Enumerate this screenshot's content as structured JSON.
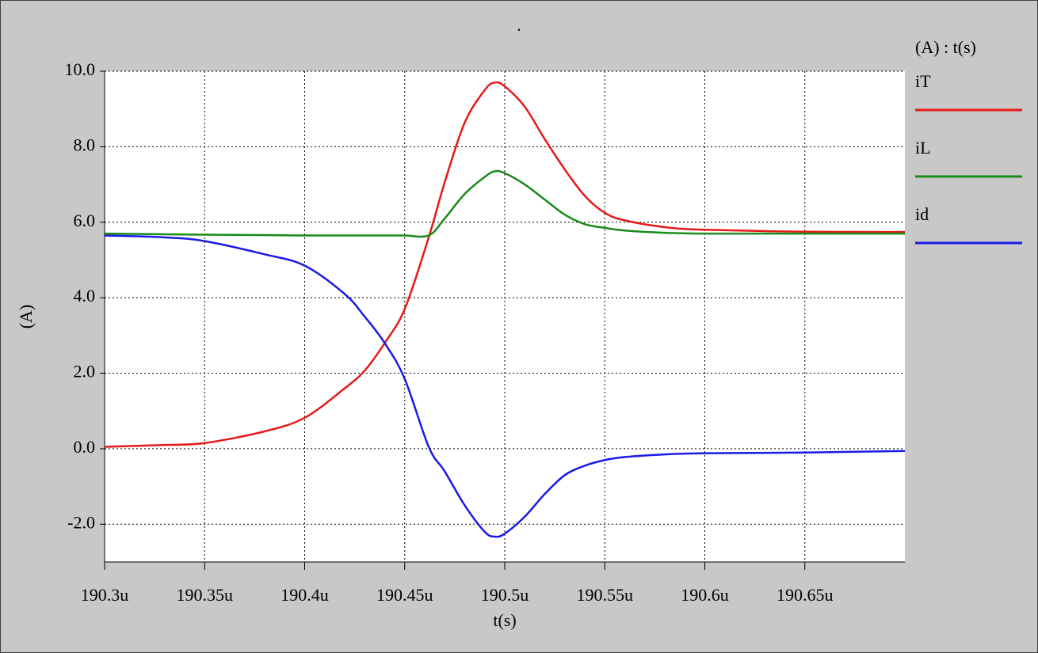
{
  "chart_data": {
    "type": "line",
    "title": ".",
    "y_label": "(A)",
    "x_label": "t(s)",
    "legend_title": "(A) : t(s)",
    "x": [
      190.3,
      190.33,
      190.35,
      190.38,
      190.4,
      190.42,
      190.43,
      190.44,
      190.45,
      190.462,
      190.47,
      190.48,
      190.49,
      190.495,
      190.5,
      190.51,
      190.52,
      190.53,
      190.54,
      190.55,
      190.56,
      190.58,
      190.6,
      190.65,
      190.7
    ],
    "series": [
      {
        "name": "iT",
        "color": "#e61919",
        "values": [
          0.05,
          0.1,
          0.15,
          0.46,
          0.82,
          1.6,
          2.07,
          2.8,
          3.7,
          5.6,
          7.06,
          8.64,
          9.5,
          9.7,
          9.6,
          9.06,
          8.2,
          7.4,
          6.7,
          6.25,
          6.05,
          5.87,
          5.8,
          5.75,
          5.74
        ]
      },
      {
        "name": "iL",
        "color": "#1a8a1a",
        "values": [
          5.7,
          5.68,
          5.67,
          5.66,
          5.65,
          5.65,
          5.65,
          5.65,
          5.65,
          5.65,
          6.1,
          6.75,
          7.2,
          7.35,
          7.3,
          7.0,
          6.6,
          6.2,
          5.95,
          5.85,
          5.78,
          5.72,
          5.7,
          5.7,
          5.7
        ]
      },
      {
        "name": "id",
        "color": "#1a1ae6",
        "values": [
          5.65,
          5.6,
          5.5,
          5.15,
          4.85,
          4.1,
          3.5,
          2.8,
          1.85,
          0.05,
          -0.6,
          -1.5,
          -2.2,
          -2.33,
          -2.25,
          -1.8,
          -1.2,
          -0.7,
          -0.45,
          -0.3,
          -0.22,
          -0.15,
          -0.12,
          -0.1,
          -0.06
        ]
      }
    ],
    "xlim": [
      190.3,
      190.7
    ],
    "xticks": [
      {
        "value": 190.3,
        "label": "190.3u"
      },
      {
        "value": 190.35,
        "label": "190.35u"
      },
      {
        "value": 190.4,
        "label": "190.4u"
      },
      {
        "value": 190.45,
        "label": "190.45u"
      },
      {
        "value": 190.5,
        "label": "190.5u"
      },
      {
        "value": 190.55,
        "label": "190.55u"
      },
      {
        "value": 190.6,
        "label": "190.6u"
      },
      {
        "value": 190.65,
        "label": "190.65u"
      }
    ],
    "ylim": [
      -3,
      10
    ],
    "yticks": [
      {
        "value": -2,
        "label": "-2.0"
      },
      {
        "value": 0,
        "label": "0.0"
      },
      {
        "value": 2,
        "label": "2.0"
      },
      {
        "value": 4,
        "label": "4.0"
      },
      {
        "value": 6,
        "label": "6.0"
      },
      {
        "value": 8,
        "label": "8.0"
      },
      {
        "value": 10,
        "label": "10.0"
      }
    ],
    "grid": true
  }
}
